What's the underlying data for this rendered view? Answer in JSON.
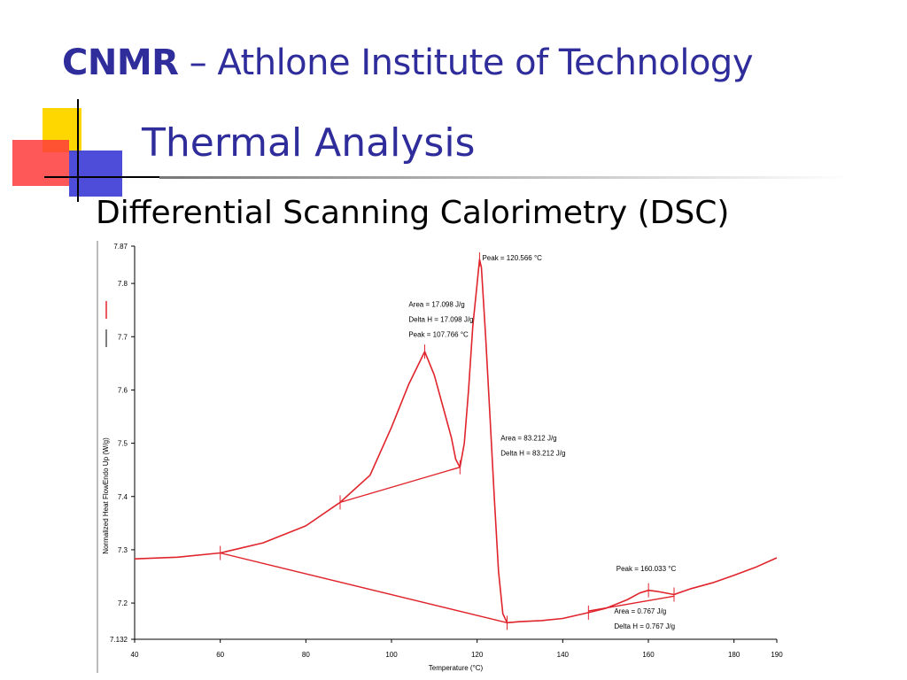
{
  "slide": {
    "title_bold": "CNMR",
    "title_rest": " – Athlone Institute of Technology",
    "subtitle": "Thermal Analysis",
    "heading": "Differential Scanning Calorimetry (DSC)"
  },
  "colors": {
    "title": "#2f2c9b",
    "curve": "#e0242c",
    "deco_yellow": "#ffd700",
    "deco_red": "#ff3b3b",
    "deco_blue": "#3a3ad6"
  },
  "chart_data": {
    "type": "line",
    "xlabel": "Temperature (°C)",
    "ylabel": "Normalized Heat FlowEndo Up (W/g)",
    "xlim": [
      40,
      190
    ],
    "ylim": [
      7.132,
      7.87
    ],
    "x_ticks": [
      "40",
      "60",
      "80",
      "100",
      "120",
      "140",
      "160",
      "180",
      "190"
    ],
    "y_ticks": [
      "7.87",
      "7.8",
      "7.7",
      "7.6",
      "7.5",
      "7.4",
      "7.3",
      "7.2",
      "7.132"
    ],
    "series": [
      {
        "values": [
          [
            40,
            7.283
          ],
          [
            50,
            7.286
          ],
          [
            60,
            7.294
          ],
          [
            70,
            7.313
          ],
          [
            80,
            7.345
          ],
          [
            88,
            7.389
          ],
          [
            95,
            7.44
          ],
          [
            100,
            7.53
          ],
          [
            104,
            7.61
          ],
          [
            107.766,
            7.672
          ],
          [
            110,
            7.628
          ],
          [
            113,
            7.54
          ],
          [
            114,
            7.51
          ],
          [
            115,
            7.47
          ],
          [
            116,
            7.455
          ],
          [
            117,
            7.5
          ],
          [
            118,
            7.6
          ],
          [
            119,
            7.72
          ],
          [
            120,
            7.8
          ],
          [
            120.566,
            7.845
          ],
          [
            121,
            7.83
          ],
          [
            122,
            7.7
          ],
          [
            123,
            7.55
          ],
          [
            124,
            7.4
          ],
          [
            125,
            7.26
          ],
          [
            126,
            7.18
          ],
          [
            127,
            7.163
          ],
          [
            130,
            7.165
          ],
          [
            135,
            7.167
          ],
          [
            140,
            7.171
          ],
          [
            146,
            7.182
          ],
          [
            150,
            7.19
          ],
          [
            155,
            7.206
          ],
          [
            158,
            7.219
          ],
          [
            160.033,
            7.224
          ],
          [
            162,
            7.222
          ],
          [
            166,
            7.216
          ],
          [
            170,
            7.227
          ],
          [
            175,
            7.238
          ],
          [
            180,
            7.252
          ],
          [
            185,
            7.267
          ],
          [
            190,
            7.285
          ]
        ]
      }
    ],
    "baselines": [
      {
        "x": [
          60,
          127
        ],
        "y": [
          7.294,
          7.163
        ]
      },
      {
        "x": [
          88,
          116
        ],
        "y": [
          7.389,
          7.455
        ]
      },
      {
        "x": [
          146,
          166
        ],
        "y": [
          7.185,
          7.213
        ]
      }
    ],
    "markers": [
      {
        "x": 60,
        "y": 7.294
      },
      {
        "x": 88,
        "y": 7.389
      },
      {
        "x": 107.766,
        "y": 7.672
      },
      {
        "x": 116,
        "y": 7.455
      },
      {
        "x": 120.566,
        "y": 7.845
      },
      {
        "x": 127,
        "y": 7.163
      },
      {
        "x": 146,
        "y": 7.182
      },
      {
        "x": 160.033,
        "y": 7.224
      },
      {
        "x": 166,
        "y": 7.216
      }
    ],
    "annotations": [
      {
        "lines": [
          "Peak = 120.566 °C"
        ],
        "x": 121.2,
        "y": 7.843
      },
      {
        "lines": [
          "Area = 17.098 J/g",
          "Delta H = 17.098 J/g",
          "Peak = 107.766 °C"
        ],
        "x": 104,
        "y": 7.756
      },
      {
        "lines": [
          "Area = 83.212 J/g",
          "Delta H = 83.212 J/g"
        ],
        "x": 125.5,
        "y": 7.505
      },
      {
        "lines": [
          "Peak = 160.033 °C"
        ],
        "x": 152.5,
        "y": 7.26
      },
      {
        "lines": [
          "Area = 0.767 J/g",
          "Delta H = 0.767 J/g"
        ],
        "x": 152,
        "y": 7.18
      }
    ]
  }
}
